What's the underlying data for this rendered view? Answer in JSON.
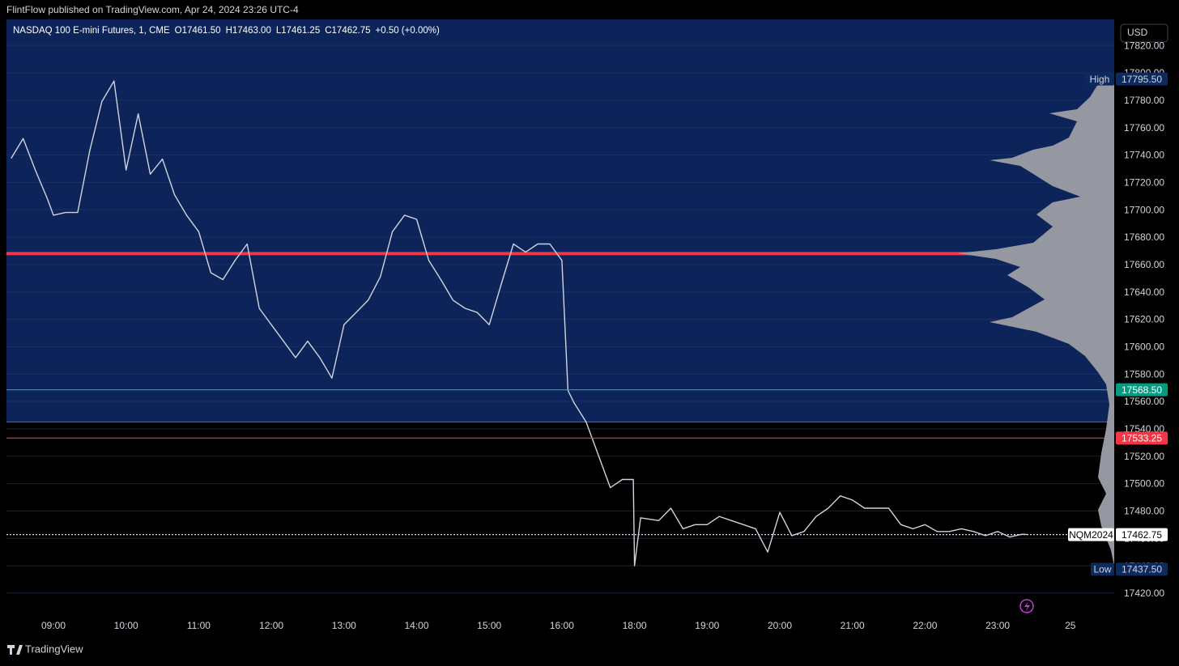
{
  "header": {
    "text": "FlintFlow published on TradingView.com, Apr 24, 2024 23:26 UTC-4"
  },
  "footer": {
    "brand": "TradingView"
  },
  "currency_button": "USD",
  "chart_data": {
    "type": "line",
    "legend": {
      "symbol": "NASDAQ 100 E-mini Futures, 1, CME",
      "open": "O17461.50",
      "high": "H17463.00",
      "low": "L17461.25",
      "close": "C17462.75",
      "change": "+0.50 (+0.00%)"
    },
    "color": "#d1d4dc",
    "x": [
      "08:25",
      "08:35",
      "08:45",
      "08:55",
      "09:00",
      "09:10",
      "09:20",
      "09:30",
      "09:40",
      "09:50",
      "10:00",
      "10:10",
      "10:20",
      "10:30",
      "10:40",
      "10:50",
      "11:00",
      "11:10",
      "11:20",
      "11:30",
      "11:40",
      "11:50",
      "12:00",
      "12:10",
      "12:20",
      "12:30",
      "12:40",
      "12:50",
      "13:00",
      "13:10",
      "13:20",
      "13:30",
      "13:40",
      "13:50",
      "14:00",
      "14:10",
      "14:20",
      "14:30",
      "14:40",
      "14:50",
      "15:00",
      "15:10",
      "15:20",
      "15:30",
      "15:40",
      "15:50",
      "16:00",
      "16:05",
      "16:10",
      "16:20",
      "16:30",
      "16:40",
      "16:50",
      "16:59",
      "18:00",
      "18:05",
      "18:20",
      "18:30",
      "18:40",
      "18:50",
      "19:00",
      "19:10",
      "19:20",
      "19:30",
      "19:40",
      "19:50",
      "20:00",
      "20:10",
      "20:20",
      "20:30",
      "20:40",
      "20:50",
      "21:00",
      "21:10",
      "21:20",
      "21:30",
      "21:40",
      "21:50",
      "22:00",
      "22:10",
      "22:20",
      "22:30",
      "22:40",
      "22:50",
      "23:00",
      "23:10",
      "23:20",
      "23:25"
    ],
    "values": [
      17737.5,
      17752,
      17729,
      17708,
      17696,
      17698,
      17698,
      17743,
      17779,
      17794,
      17729,
      17770,
      17726,
      17737,
      17711,
      17696,
      17684,
      17654,
      17649,
      17663,
      17675,
      17628,
      17616,
      17604,
      17592,
      17604,
      17592,
      17577,
      17616,
      17625,
      17634,
      17651,
      17684,
      17696,
      17693,
      17663,
      17649,
      17634,
      17628,
      17625,
      17616,
      17646,
      17675,
      17669,
      17675,
      17675,
      17663,
      17568,
      17559,
      17545,
      17521,
      17497,
      17503,
      17503,
      17440,
      17475,
      17473,
      17482,
      17467,
      17470,
      17470,
      17476,
      17473,
      17470,
      17467,
      17450,
      17479,
      17462,
      17465,
      17476,
      17482,
      17491,
      17488,
      17482,
      17482,
      17482,
      17470,
      17467,
      17470,
      17465,
      17465,
      17467,
      17465,
      17462,
      17465,
      17461,
      17463,
      17462.75
    ],
    "ylim": [
      17404,
      17839
    ],
    "yticks": [
      {
        "value": 17420,
        "label": "17420.00"
      },
      {
        "value": 17440,
        "label": "17440.00"
      },
      {
        "value": 17460,
        "label": "17460.00"
      },
      {
        "value": 17480,
        "label": "17480.00"
      },
      {
        "value": 17500,
        "label": "17500.00"
      },
      {
        "value": 17520,
        "label": "17520.00"
      },
      {
        "value": 17540,
        "label": "17540.00"
      },
      {
        "value": 17560,
        "label": "17560.00"
      },
      {
        "value": 17580,
        "label": "17580.00"
      },
      {
        "value": 17600,
        "label": "17600.00"
      },
      {
        "value": 17620,
        "label": "17620.00"
      },
      {
        "value": 17640,
        "label": "17640.00"
      },
      {
        "value": 17660,
        "label": "17660.00"
      },
      {
        "value": 17680,
        "label": "17680.00"
      },
      {
        "value": 17700,
        "label": "17700.00"
      },
      {
        "value": 17720,
        "label": "17720.00"
      },
      {
        "value": 17740,
        "label": "17740.00"
      },
      {
        "value": 17760,
        "label": "17760.00"
      },
      {
        "value": 17780,
        "label": "17780.00"
      },
      {
        "value": 17800,
        "label": "17800.00"
      },
      {
        "value": 17820,
        "label": "17820.00"
      }
    ],
    "xticks": [
      "09:00",
      "10:00",
      "11:00",
      "12:00",
      "13:00",
      "14:00",
      "15:00",
      "16:00",
      "18:00",
      "19:00",
      "20:00",
      "21:00",
      "22:00",
      "23:00",
      {
        "value": "24:00",
        "label": "25"
      }
    ],
    "grid": true,
    "value_area_low": 17545,
    "value_area_color": "#0c2459",
    "levels": [
      {
        "value": 17668,
        "color": "#f23645"
      },
      {
        "value": 17545,
        "color": "#2962ff"
      }
    ],
    "price_labels": [
      {
        "name": "High",
        "value": 17795.5,
        "label": "17795.50",
        "color": "#0d2a5e",
        "text_color": "#d1d4dc"
      },
      {
        "value": 17568.5,
        "label": "17568.50",
        "color": "#089981",
        "text_color": "#ffffff",
        "line": "#22ab94"
      },
      {
        "value": 17533.25,
        "label": "17533.25",
        "color": "#f23645",
        "text_color": "#ffffff",
        "line": "#f23645"
      },
      {
        "name": "NQM2024",
        "value": 17462.75,
        "label": "17462.75",
        "color": "#ffffff",
        "text_color": "#000000",
        "line": "#d1d4dc",
        "dashed": true
      },
      {
        "name": "Low",
        "value": 17437.5,
        "label": "17437.50",
        "color": "#0d2a5e",
        "text_color": "#d1d4dc"
      }
    ]
  }
}
